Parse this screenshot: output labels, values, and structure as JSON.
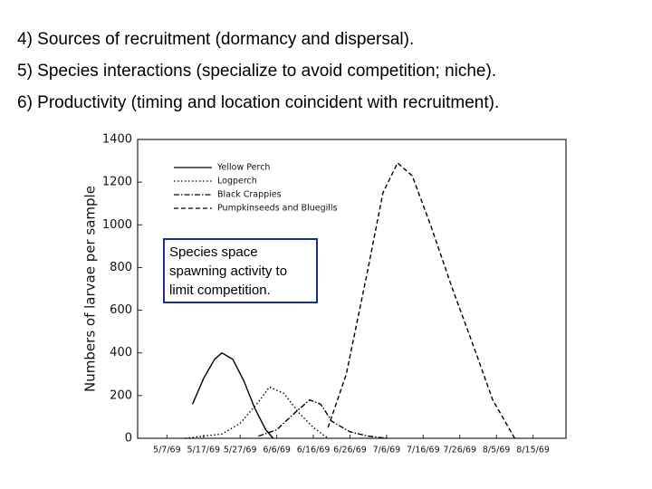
{
  "slide": {
    "lines": [
      "4) Sources of recruitment (dormancy and dispersal).",
      "5) Species interactions (specialize to avoid competition; niche).",
      "6) Productivity (timing and location coincident with recruitment)."
    ],
    "callout": "Species space spawning activity to limit competition."
  },
  "chart_data": {
    "type": "line",
    "ylabel": "Numbers of larvae per sample",
    "xlim": [
      "4/29/69",
      "8/24/69"
    ],
    "xticks": [
      "5/7/69",
      "5/17/69",
      "5/27/69",
      "6/6/69",
      "6/16/69",
      "6/26/69",
      "7/6/69",
      "7/16/69",
      "7/26/69",
      "8/5/69",
      "8/15/69"
    ],
    "ylim": [
      0,
      1400
    ],
    "yticks": [
      0,
      200,
      400,
      600,
      800,
      1000,
      1200,
      1400
    ],
    "series": [
      {
        "name": "Yellow Perch",
        "color": "#000000",
        "dash": "none",
        "x": [
          "5/14/69",
          "5/17/69",
          "5/20/69",
          "5/22/69",
          "5/25/69",
          "5/28/69",
          "5/31/69",
          "6/3/69",
          "6/5/69"
        ],
        "values": [
          160,
          280,
          370,
          400,
          370,
          270,
          140,
          40,
          0
        ]
      },
      {
        "name": "Logperch",
        "color": "#000000",
        "dash": "1.5 2.5",
        "x": [
          "5/12/69",
          "5/22/69",
          "5/27/69",
          "6/1/69",
          "6/4/69",
          "6/8/69",
          "6/12/69",
          "6/16/69",
          "6/20/69"
        ],
        "values": [
          0,
          20,
          70,
          170,
          240,
          210,
          120,
          50,
          0
        ]
      },
      {
        "name": "Black Crappies",
        "color": "#000000",
        "dash": "6 2 1.5 2",
        "x": [
          "6/1/69",
          "6/6/69",
          "6/11/69",
          "6/15/69",
          "6/18/69",
          "6/21/69",
          "6/26/69",
          "7/1/69",
          "7/6/69"
        ],
        "values": [
          10,
          40,
          120,
          180,
          160,
          80,
          30,
          10,
          0
        ]
      },
      {
        "name": "Pumpkinseeds and Bluegills",
        "color": "#000000",
        "dash": "5 3",
        "x": [
          "6/20/69",
          "6/25/69",
          "7/1/69",
          "7/5/69",
          "7/9/69",
          "7/13/69",
          "7/18/69",
          "7/24/69",
          "7/30/69",
          "8/4/69",
          "8/10/69"
        ],
        "values": [
          50,
          300,
          800,
          1150,
          1290,
          1230,
          1000,
          700,
          420,
          180,
          0
        ]
      }
    ]
  }
}
